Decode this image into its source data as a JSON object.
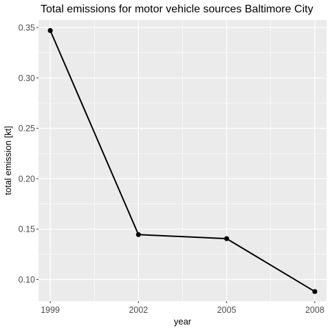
{
  "chart_data": {
    "type": "line",
    "title": "Total emissions for motor vehicle sources Baltimore City",
    "xlabel": "year",
    "ylabel": "total emission [kt]",
    "x": [
      1999,
      2002,
      2005,
      2008
    ],
    "values": [
      0.347,
      0.1445,
      0.1405,
      0.088
    ],
    "xticks": [
      "1999",
      "2002",
      "2005",
      "2008"
    ],
    "yticks": [
      "0.10",
      "0.15",
      "0.20",
      "0.25",
      "0.30",
      "0.35"
    ],
    "ytick_values": [
      0.1,
      0.15,
      0.2,
      0.25,
      0.3,
      0.35
    ],
    "xlim": [
      1998.6,
      2008.4
    ],
    "ylim": [
      0.0785,
      0.3575
    ],
    "grid": true,
    "colors": {
      "panel": "#ebebeb",
      "grid": "#ffffff",
      "line": "#000000",
      "tick_text": "#4d4d4d"
    }
  }
}
